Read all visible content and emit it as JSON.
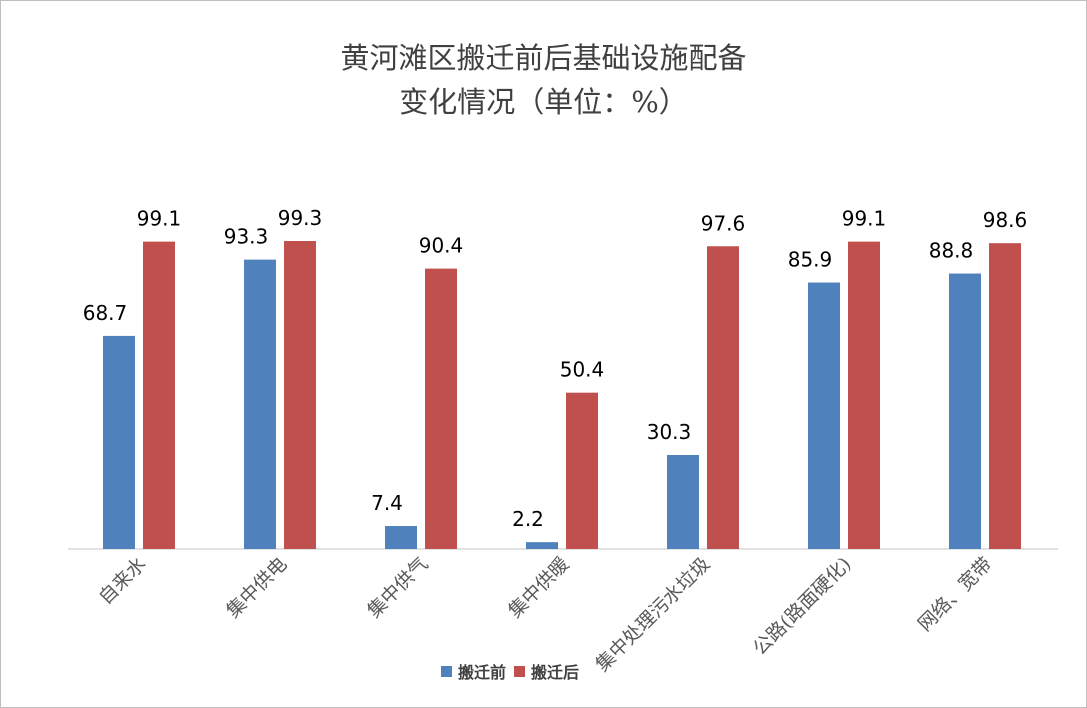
{
  "chart_data": {
    "type": "bar",
    "title_line1": "黄河滩区搬迁前后基础设施配备",
    "title_line2": "变化情况（单位：%）",
    "categories": [
      "自来水",
      "集中供电",
      "集中供气",
      "集中供暖",
      "集中处理污水垃圾",
      "公路(路面硬化)",
      "网络、宽带"
    ],
    "series": [
      {
        "name": "搬迁前",
        "color": "#4F81BD",
        "values": [
          68.7,
          93.3,
          7.4,
          2.2,
          30.3,
          85.9,
          88.8
        ],
        "labels": [
          "68.7",
          "93.3",
          "7.4",
          "2.2",
          "30.3",
          "85.9",
          "88.8"
        ]
      },
      {
        "name": "搬迁后",
        "color": "#C0504D",
        "values": [
          99.1,
          99.3,
          90.4,
          50.4,
          97.6,
          99.1,
          98.6
        ],
        "labels": [
          "99.1",
          "99.3",
          "90.4",
          "50.4",
          "97.6",
          "99.1",
          "98.6"
        ]
      }
    ],
    "ylim": [
      0,
      100
    ],
    "grid": false,
    "legend_position": "bottom"
  }
}
